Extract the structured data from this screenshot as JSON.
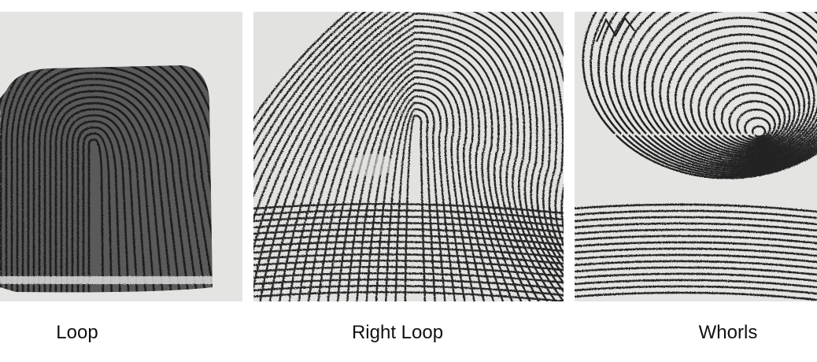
{
  "captions": {
    "loop": "Loop",
    "right_loop": "Right Loop",
    "whorls": "Whorls"
  },
  "images": [
    {
      "name": "loop-fingerprint",
      "pattern": "loop"
    },
    {
      "name": "right-loop-fingerprint",
      "pattern": "right-loop"
    },
    {
      "name": "whorl-fingerprint",
      "pattern": "whorl"
    }
  ],
  "colors": {
    "paper": "#e6e6e6",
    "ink": "#2a2a2a",
    "text": "#111111"
  }
}
